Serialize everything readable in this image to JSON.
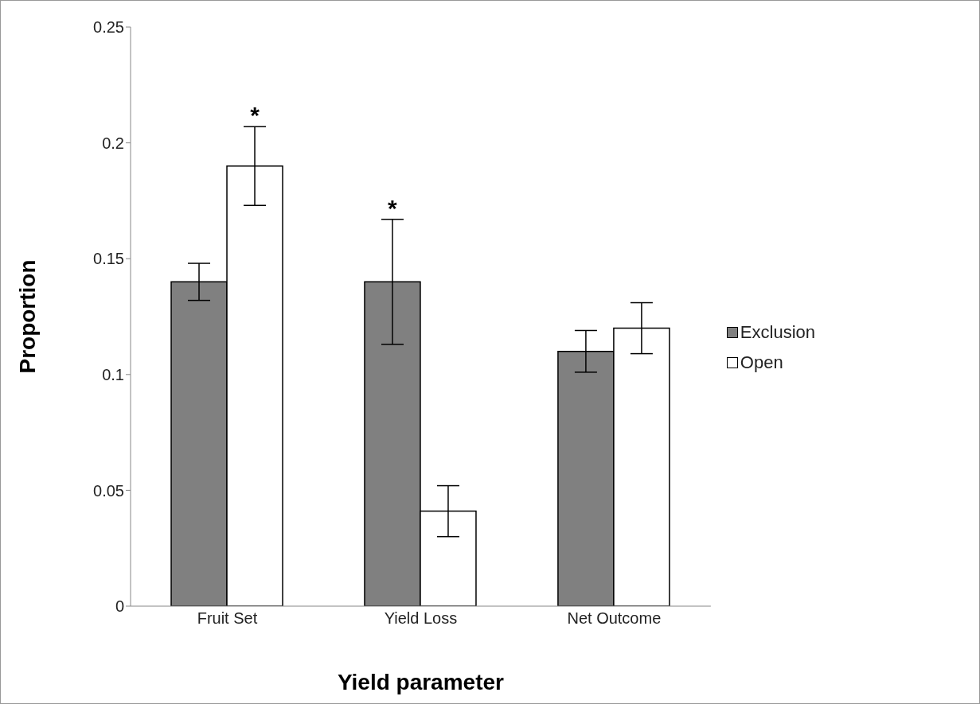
{
  "chart_data": {
    "type": "bar",
    "xlabel": "Yield parameter",
    "ylabel": "Proportion",
    "categories": [
      "Fruit Set",
      "Yield Loss",
      "Net Outcome"
    ],
    "series": [
      {
        "name": "Exclusion",
        "color": "#808080",
        "values": [
          0.14,
          0.14,
          0.11
        ],
        "errors": [
          0.008,
          0.027,
          0.009
        ]
      },
      {
        "name": "Open",
        "color": "#ffffff",
        "values": [
          0.19,
          0.041,
          0.12
        ],
        "errors": [
          0.017,
          0.011,
          0.011
        ]
      }
    ],
    "ylim": [
      0,
      0.25
    ],
    "yticks": [
      0,
      0.05,
      0.1,
      0.15,
      0.2,
      0.25
    ],
    "grid": false,
    "legend": "right",
    "annotations": [
      {
        "text": "*",
        "x": "Fruit Set",
        "y": 0.19
      },
      {
        "text": "*",
        "x": "Yield Loss",
        "y": 0.14
      }
    ]
  }
}
